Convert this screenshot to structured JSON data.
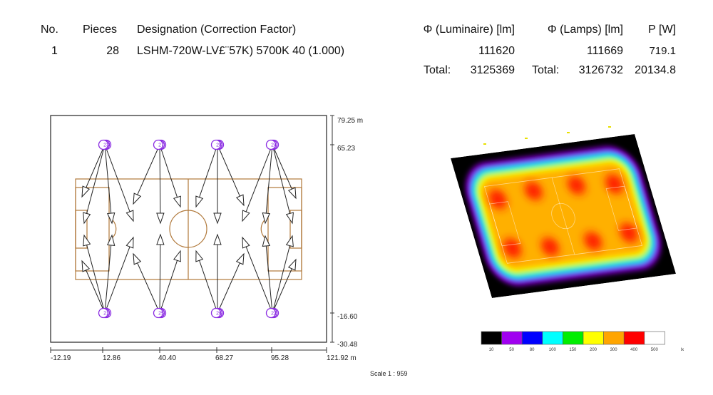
{
  "table": {
    "headers": {
      "no": "No.",
      "pieces": "Pieces",
      "designation": "Designation (Correction Factor)",
      "phi_luminaire": "Φ (Luminaire) [lm]",
      "phi_lamps": "Φ (Lamps) [lm]",
      "power": "P [W]"
    },
    "row": {
      "no": "1",
      "pieces": "28",
      "designation": "LSHM-720W-LV£¨57K) 5700K 40 (1.000)",
      "phi_luminaire": "111620",
      "phi_lamps": "111669",
      "power": "719.1"
    },
    "totals": {
      "label1": "Total:",
      "lum": "3125369",
      "label2": "Total:",
      "lamps": "3126732",
      "power": "20134.8"
    }
  },
  "plan": {
    "y_ticks": [
      "79.25 m",
      "65.23",
      "-16.60",
      "-30.48"
    ],
    "x_ticks": [
      "-12.19",
      "12.86",
      "40.40",
      "68.27",
      "95.28",
      "121.92 m"
    ],
    "poles_top": [
      "23",
      "27",
      "28",
      "24"
    ],
    "poles_bottom": [
      "21",
      "25",
      "26",
      "22"
    ],
    "scale": "Scale 1 : 959"
  },
  "legend": {
    "values": [
      "10",
      "50",
      "80",
      "100",
      "150",
      "200",
      "300",
      "400",
      "500"
    ],
    "colors": [
      "#000000",
      "#a000f0",
      "#0000ff",
      "#00ffff",
      "#00ee00",
      "#ffff00",
      "#ffa500",
      "#ff0000",
      "#ffffff"
    ],
    "unit": "lx"
  },
  "colors": {
    "field_line": "#b0783a",
    "pole": "#8a2be2"
  }
}
